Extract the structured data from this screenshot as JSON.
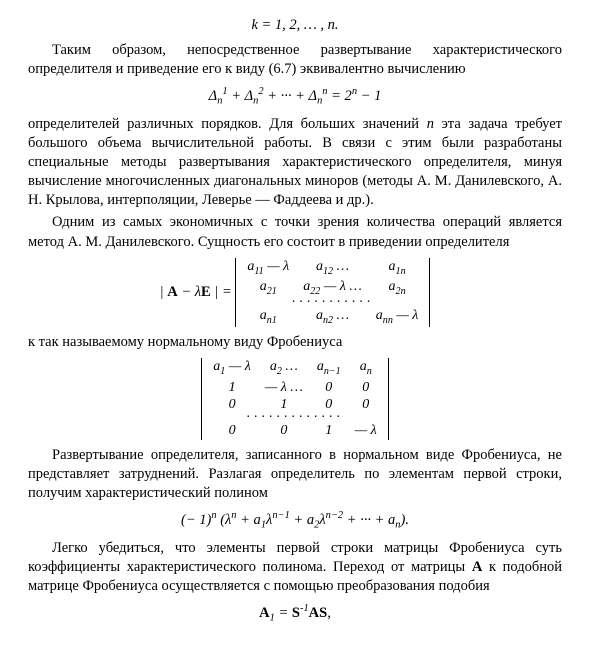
{
  "eq1": "k = 1, 2, … , n.",
  "p1": "Таким образом, непосредственное развертывание характеристического определителя и приведение его к виду (6.7) эквивалентно вычислению",
  "eq2_html": "Δ<sub>n</sub><sup>1</sup> + Δ<sub>n</sub><sup>2</sup> + ··· + Δ<sub>n</sub><sup>n</sup> = 2<sup>n</sup> − 1",
  "p2_html": "определителей различных порядков. Для больших значений <i>n</i> эта задача требует большого объема вычислительной работы. В связи с этим были разработаны специальные методы развертывания характеристического определителя, минуя вычисление многочисленных диагональных миноров (методы А. М. Данилевского, А. Н. Крылова, интерполяции, Леверье — Фаддеева и др.).",
  "p3": "Одним из самых экономичных с точки зрения количества операций является метод А. М. Данилевского. Сущность его состоит в приведении определителя",
  "matrix1_prefix_html": "| <span class='bold'>A</span> − λ<span class='bold'>E</span> | =",
  "m1": {
    "r0": [
      "a<sub>11</sub> — λ",
      "a<sub>12</sub> …",
      "a<sub>1n</sub>"
    ],
    "r1": [
      "a<sub>21</sub>",
      "a<sub>22</sub> — λ …",
      "a<sub>2n</sub>"
    ],
    "r3": [
      "a<sub>n1</sub>",
      "a<sub>n2</sub> …",
      "a<sub>nn</sub> — λ"
    ]
  },
  "p4": "к так называемому нормальному виду Фробениуса",
  "m2": {
    "r0": [
      "a<sub>1</sub> — λ",
      "a<sub>2</sub> …",
      "a<sub>n−1</sub>",
      "a<sub>n</sub>"
    ],
    "r1": [
      "1",
      "— λ …",
      "0",
      "0"
    ],
    "r2": [
      "0",
      "1",
      "0",
      "0"
    ],
    "r4": [
      "0",
      "0",
      "1",
      "— λ"
    ]
  },
  "p5": "Развертывание определителя, записанного в нормальном виде Фробениуса, не представляет затруднений. Разлагая определитель по элементам первой строки, получим характеристический полином",
  "eq3_html": "(− 1)<sup>n</sup> (λ<sup>n</sup> + a<sub>1</sub>λ<sup>n−1</sup> + a<sub>2</sub>λ<sup>n−2</sup> + ··· + a<sub>n</sub>).",
  "p6_html": "Легко убедиться, что элементы первой строки матрицы Фробениуса суть коэффициенты характеристического полинома. Переход от матрицы <b>A</b> к подобной матрице Фробениуса осуществляется с помощью преобразования подобия",
  "eq4_html": "<span class='bold'>A</span><sub>1</sub> = <span class='bold'>S</span><sup>-1</sup><span class='bold'>AS</span>,"
}
